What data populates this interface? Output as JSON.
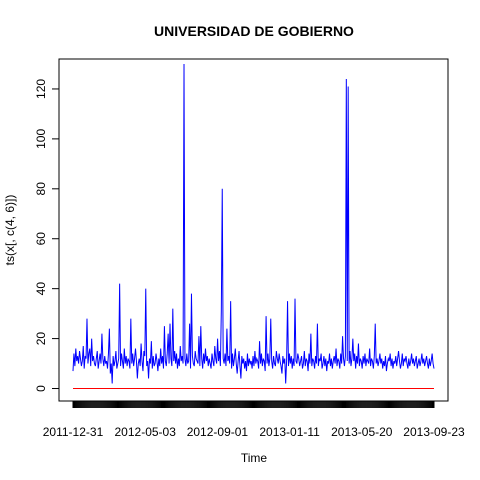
{
  "chart_data": {
    "type": "line",
    "title": "UNIVERSIDAD DE GOBIERNO",
    "xlabel": "Time",
    "ylabel": "ts(x[, c(4, 6)])",
    "xlim": [
      0,
      365
    ],
    "ylim": [
      -5,
      132
    ],
    "yticks": [
      0,
      20,
      40,
      60,
      80,
      100,
      120
    ],
    "xtick_labels": [
      "2011-12-31",
      "2012-05-03",
      "2012-09-01",
      "2013-01-11",
      "2013-05-20",
      "2013-09-23"
    ],
    "grid": false,
    "legend": "none",
    "series": [
      {
        "color": "#0000ff",
        "values": [
          7,
          14,
          9,
          16,
          11,
          13,
          10,
          15,
          12,
          9,
          11,
          17,
          8,
          13,
          12,
          28,
          10,
          14,
          16,
          9,
          20,
          11,
          13,
          10,
          9,
          12,
          15,
          8,
          11,
          14,
          10,
          22,
          12,
          9,
          13,
          10,
          11,
          8,
          14,
          24,
          6,
          10,
          2,
          13,
          9,
          11,
          15,
          8,
          10,
          12,
          42,
          9,
          14,
          11,
          8,
          16,
          10,
          13,
          9,
          12,
          11,
          8,
          28,
          10,
          14,
          9,
          12,
          16,
          11,
          4,
          10,
          12,
          9,
          18,
          11,
          7,
          15,
          13,
          40,
          9,
          11,
          4,
          12,
          10,
          19,
          8,
          13,
          9,
          10,
          14,
          11,
          7,
          12,
          9,
          16,
          10,
          13,
          8,
          25,
          11,
          9,
          14,
          22,
          10,
          26,
          12,
          9,
          32,
          11,
          15,
          10,
          14,
          8,
          12,
          9,
          17,
          11,
          13,
          10,
          130,
          12,
          9,
          14,
          10,
          11,
          26,
          8,
          38,
          13,
          10,
          9,
          15,
          12,
          11,
          10,
          21,
          9,
          25,
          12,
          8,
          14,
          10,
          16,
          11,
          13,
          9,
          12,
          10,
          8,
          14,
          11,
          9,
          17,
          12,
          10,
          20,
          11,
          15,
          9,
          31,
          80,
          12,
          10,
          14,
          9,
          24,
          11,
          13,
          10,
          35,
          8,
          14,
          9,
          12,
          16,
          10,
          6,
          11,
          15,
          9,
          4,
          13,
          10,
          12,
          8,
          11,
          7,
          14,
          9,
          12,
          10,
          11,
          8,
          13,
          9,
          15,
          10,
          12,
          11,
          8,
          19,
          10,
          14,
          9,
          12,
          11,
          7,
          29,
          10,
          14,
          9,
          12,
          28,
          11,
          8,
          13,
          10,
          9,
          15,
          12,
          10,
          14,
          11,
          9,
          6,
          13,
          10,
          12,
          2,
          11,
          35,
          9,
          14,
          10,
          13,
          8,
          12,
          9,
          36,
          11,
          10,
          14,
          12,
          9,
          11,
          13,
          8,
          10,
          15,
          9,
          12,
          11,
          7,
          14,
          10,
          22,
          9,
          12,
          11,
          8,
          13,
          10,
          26,
          9,
          12,
          11,
          14,
          8,
          10,
          13,
          9,
          12,
          7,
          11,
          10,
          14,
          9,
          12,
          8,
          11,
          13,
          10,
          16,
          9,
          12,
          11,
          8,
          14,
          10,
          21,
          12,
          9,
          13,
          124,
          11,
          121,
          10,
          15,
          9,
          12,
          20,
          11,
          14,
          8,
          13,
          10,
          18,
          9,
          12,
          11,
          8,
          13,
          10,
          14,
          9,
          12,
          11,
          10,
          16,
          9,
          12,
          11,
          8,
          13,
          26,
          10,
          12,
          9,
          11,
          14,
          10,
          12,
          8,
          11,
          9,
          13,
          7,
          10,
          12,
          11,
          14,
          9,
          12,
          8,
          11,
          10,
          13,
          9,
          12,
          15,
          11,
          8,
          10,
          14,
          9,
          12,
          11,
          13,
          10,
          8,
          12,
          9,
          11,
          14,
          10,
          12,
          9,
          11,
          13,
          8,
          10,
          12,
          9,
          11,
          14,
          10,
          12,
          9,
          11,
          13,
          10,
          8,
          12,
          9,
          11,
          14,
          10,
          8
        ]
      },
      {
        "color": "#ff0000",
        "values": [
          0,
          0
        ]
      }
    ]
  }
}
